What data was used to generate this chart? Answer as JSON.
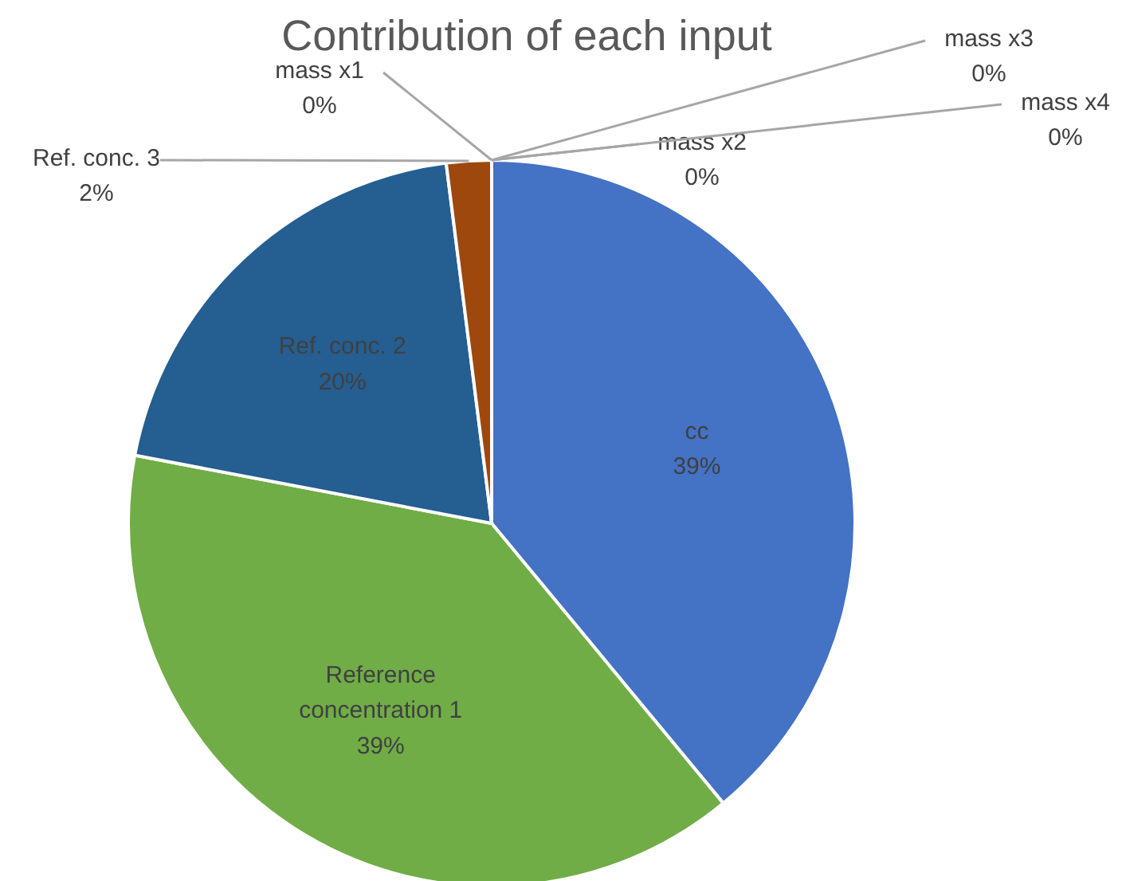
{
  "chart_data": {
    "type": "pie",
    "title": "Contribution of each input",
    "categories": [
      "cc",
      "Reference concentration 1",
      "Ref. conc. 2",
      "Ref. conc. 3",
      "mass x1",
      "mass x2",
      "mass x3",
      "mass x4"
    ],
    "values": [
      39,
      39,
      20,
      2,
      0,
      0,
      0,
      0
    ],
    "value_labels": [
      "39%",
      "39%",
      "20%",
      "2%",
      "0%",
      "0%",
      "0%",
      "0%"
    ],
    "colors": [
      "#4472c4",
      "#70ad47",
      "#255e91",
      "#9e480e",
      "#636363",
      "#997300",
      "#264478",
      "#43682b"
    ]
  }
}
